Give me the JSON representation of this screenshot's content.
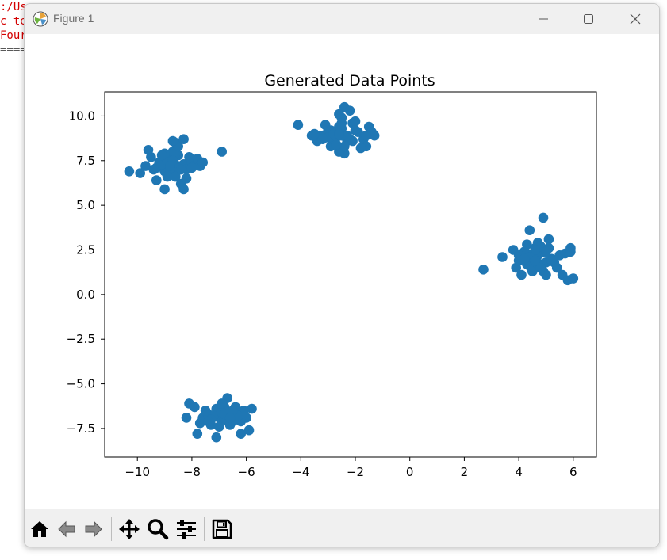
{
  "terminal": {
    "lines": [
      ":/Us",
      "c te",
      "Four",
      "",
      "===="
    ]
  },
  "window": {
    "title": "Figure 1"
  },
  "titlebar_buttons": [
    {
      "name": "minimize-icon"
    },
    {
      "name": "maximize-icon"
    },
    {
      "name": "close-icon"
    }
  ],
  "toolbar": {
    "buttons": [
      "home-icon",
      "back-icon",
      "forward-icon",
      "pan-icon",
      "zoom-icon",
      "configure-subplots-icon",
      "save-icon"
    ]
  },
  "colors": {
    "point": "#1f77b4",
    "titlebar": "#f0f0f0",
    "terminal_text": "#d40000"
  },
  "chart_data": {
    "type": "scatter",
    "title": "Generated Data Points",
    "xlabel": "",
    "ylabel": "",
    "xlim": [
      -11.2,
      6.85
    ],
    "ylim": [
      -9.1,
      11.35
    ],
    "xticks": [
      -10,
      -8,
      -6,
      -4,
      -2,
      0,
      2,
      4,
      6
    ],
    "xtick_labels": [
      "−10",
      "−8",
      "−6",
      "−4",
      "−2",
      "0",
      "2",
      "4",
      "6"
    ],
    "yticks": [
      10.0,
      7.5,
      5.0,
      2.5,
      0.0,
      -2.5,
      -5.0,
      -7.5
    ],
    "ytick_labels": [
      "10.0",
      "7.5",
      "5.0",
      "2.5",
      "0.0",
      "−2.5",
      "−5.0",
      "−7.5"
    ],
    "grid": false,
    "x": [
      -10.3,
      -9.9,
      -9.7,
      -9.5,
      -9.6,
      -9.3,
      -9.2,
      -9.0,
      -8.9,
      -8.7,
      -8.6,
      -8.5,
      -8.4,
      -8.3,
      -8.2,
      -8.0,
      -7.8,
      -7.7,
      -7.6,
      -9.1,
      -8.8,
      -8.6,
      -8.9,
      -9.3,
      -8.4,
      -8.5,
      -8.7,
      -9.0,
      -8.1,
      -8.6,
      -8.8,
      -8.3,
      -8.9,
      -9.4,
      -6.9,
      -8.5,
      -8.2,
      -9.0,
      -8.7,
      -8.4,
      -8.6,
      -9.1,
      -8.8,
      -8.0,
      -8.3,
      -4.1,
      -3.6,
      -3.4,
      -3.2,
      -3.0,
      -2.9,
      -2.7,
      -2.6,
      -2.5,
      -2.4,
      -2.2,
      -2.1,
      -1.9,
      -1.7,
      -1.6,
      -1.5,
      -1.4,
      -1.3,
      -2.3,
      -2.8,
      -2.5,
      -3.1,
      -2.6,
      -2.0,
      -3.3,
      -2.7,
      -2.4,
      -2.2,
      -2.9,
      -3.0,
      -2.5,
      -2.1,
      -1.8,
      -2.6,
      -2.3,
      -2.8,
      -3.2,
      -2.5,
      -2.4,
      -1.6,
      -2.0,
      -2.7,
      -2.6,
      -3.5,
      2.7,
      3.4,
      3.8,
      3.9,
      4.0,
      4.1,
      4.2,
      4.3,
      4.4,
      4.5,
      4.6,
      4.7,
      4.8,
      4.9,
      5.0,
      5.1,
      5.2,
      5.3,
      5.4,
      5.6,
      5.7,
      5.8,
      5.9,
      5.9,
      6.0,
      4.3,
      4.6,
      4.9,
      4.4,
      5.0,
      4.7,
      4.1,
      4.5,
      4.8,
      5.2,
      4.6,
      4.3,
      4.9,
      4.0,
      4.7,
      5.1,
      4.4,
      4.8,
      5.5,
      4.2,
      5.0,
      4.6,
      -8.1,
      -7.9,
      -7.7,
      -7.6,
      -7.4,
      -7.3,
      -7.1,
      -7.0,
      -6.9,
      -6.8,
      -6.7,
      -6.6,
      -6.5,
      -6.4,
      -6.3,
      -6.2,
      -6.1,
      -6.0,
      -5.9,
      -5.8,
      -8.2,
      -7.5,
      -7.2,
      -6.8,
      -6.5,
      -6.9,
      -7.0,
      -6.6,
      -7.3,
      -6.7,
      -6.4,
      -6.2,
      -7.8,
      -6.3,
      -7.1,
      -6.8,
      -6.5,
      -6.9,
      -7.4,
      -6.6
    ],
    "y": [
      6.9,
      6.8,
      7.2,
      7.7,
      8.1,
      7.1,
      7.4,
      6.9,
      7.6,
      8.0,
      8.5,
      7.8,
      6.2,
      7.3,
      7.0,
      7.4,
      7.6,
      7.2,
      7.4,
      7.3,
      6.7,
      7.9,
      7.5,
      6.4,
      7.1,
      8.3,
      8.6,
      5.9,
      7.7,
      6.8,
      7.0,
      5.9,
      6.6,
      7.0,
      8.0,
      7.2,
      6.5,
      7.9,
      7.5,
      7.0,
      6.6,
      7.8,
      7.2,
      7.1,
      8.7,
      9.5,
      8.9,
      8.6,
      8.9,
      9.2,
      8.3,
      8.8,
      9.4,
      9.9,
      10.5,
      10.3,
      9.6,
      9.1,
      8.7,
      8.3,
      9.4,
      9.1,
      8.9,
      8.6,
      8.5,
      8.9,
      9.5,
      10.1,
      9.7,
      8.9,
      8.4,
      7.9,
      8.7,
      9.2,
      8.8,
      9.3,
      8.6,
      8.2,
      8.0,
      8.9,
      9.0,
      8.7,
      9.6,
      8.3,
      8.9,
      9.2,
      8.4,
      9.0,
      9.0,
      1.4,
      2.1,
      2.5,
      1.5,
      1.9,
      1.1,
      2.4,
      2.8,
      3.6,
      1.3,
      2.6,
      2.9,
      1.7,
      4.3,
      1.1,
      3.1,
      2.0,
      1.8,
      1.5,
      1.1,
      2.3,
      0.8,
      2.6,
      2.4,
      0.9,
      1.7,
      2.1,
      2.4,
      1.6,
      1.8,
      2.2,
      2.0,
      1.4,
      2.7,
      1.9,
      2.5,
      2.3,
      1.3,
      2.2,
      1.7,
      2.6,
      2.1,
      1.5,
      2.2,
      2.0,
      2.4,
      1.9,
      -6.1,
      -6.3,
      -7.2,
      -6.9,
      -6.7,
      -7.3,
      -6.4,
      -6.9,
      -6.2,
      -7.0,
      -6.6,
      -7.3,
      -6.8,
      -6.7,
      -7.0,
      -7.8,
      -6.5,
      -6.9,
      -7.6,
      -6.4,
      -6.9,
      -6.5,
      -6.8,
      -6.3,
      -7.1,
      -6.6,
      -7.4,
      -6.9,
      -7.0,
      -5.8,
      -6.3,
      -7.1,
      -7.8,
      -6.8,
      -8.0,
      -6.7,
      -6.5,
      -6.1,
      -7.1,
      -6.9
    ]
  }
}
